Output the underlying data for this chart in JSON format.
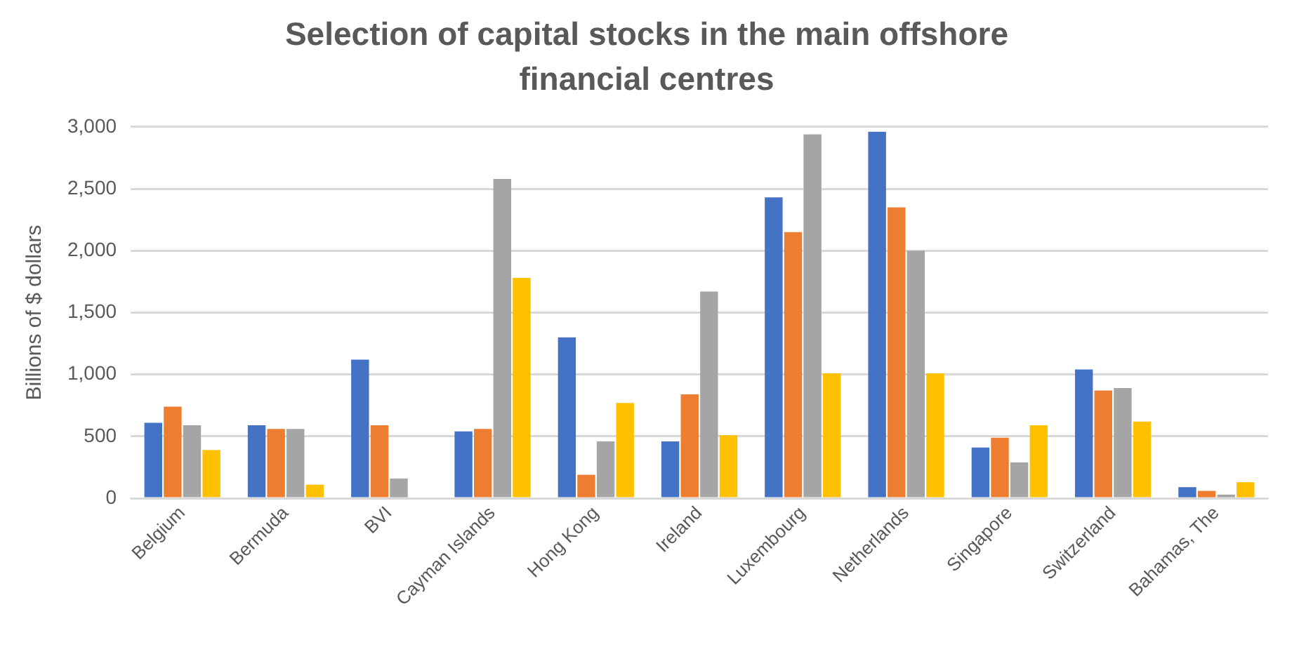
{
  "chart_data": {
    "type": "bar",
    "title": "Selection of capital stocks in the main offshore financial centres",
    "ylabel": "Billions of $ dollars",
    "categories": [
      "Belgium",
      "Bermuda",
      "BVI",
      "Cayman Islands",
      "Hong Kong",
      "Ireland",
      "Luxembourg",
      "Netherlands",
      "Singapore",
      "Switzerland",
      "Bahamas, The"
    ],
    "series": [
      {
        "color": "#4472c4",
        "values": [
          610,
          590,
          1120,
          540,
          1300,
          460,
          2430,
          2960,
          410,
          1040,
          90
        ]
      },
      {
        "color": "#ed7d31",
        "values": [
          740,
          560,
          590,
          560,
          190,
          840,
          2150,
          2350,
          490,
          870,
          60
        ]
      },
      {
        "color": "#a5a5a5",
        "values": [
          590,
          560,
          160,
          2580,
          460,
          1670,
          2940,
          2000,
          290,
          890,
          30
        ]
      },
      {
        "color": "#ffc000",
        "values": [
          390,
          110,
          null,
          1780,
          770,
          510,
          1010,
          1010,
          590,
          620,
          130
        ]
      }
    ],
    "ylim": [
      0,
      3000
    ],
    "yticks": [
      {
        "value": 0,
        "label": "0"
      },
      {
        "value": 500,
        "label": "500"
      },
      {
        "value": 1000,
        "label": "1,000"
      },
      {
        "value": 1500,
        "label": "1,500"
      },
      {
        "value": 2000,
        "label": "2,000"
      },
      {
        "value": 2500,
        "label": "2,500"
      },
      {
        "value": 3000,
        "label": "3,000"
      }
    ],
    "grid": "y",
    "legend": false
  }
}
